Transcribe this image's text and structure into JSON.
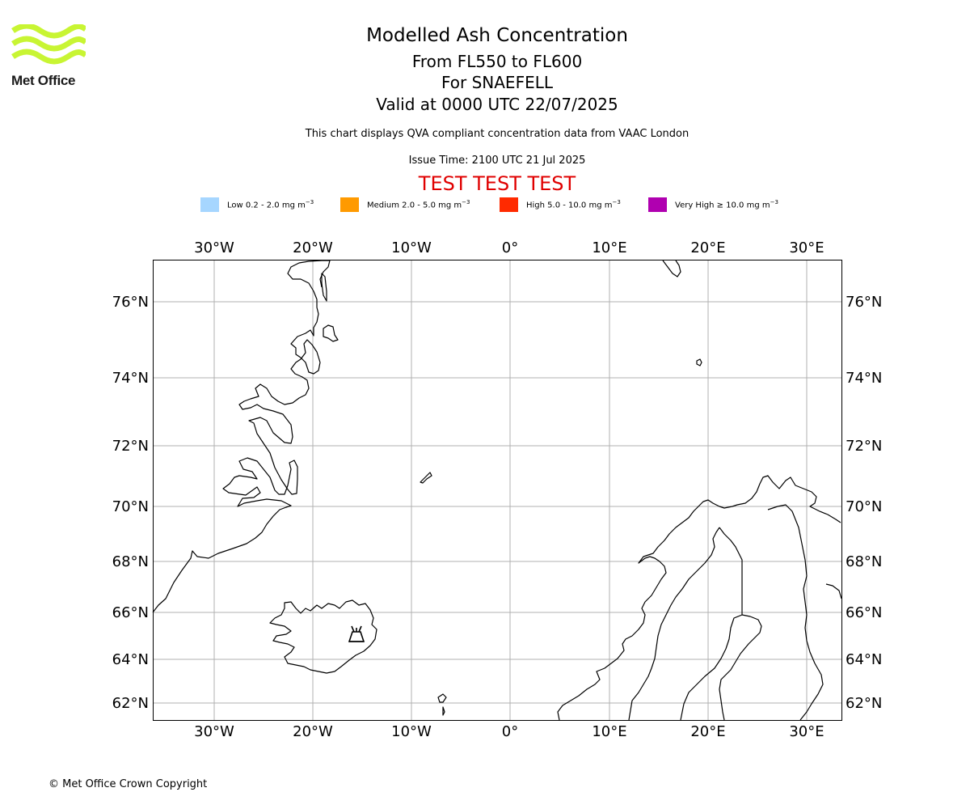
{
  "header": {
    "logo_text": "Met Office",
    "title": "Modelled Ash Concentration",
    "levels": "From FL550 to FL600",
    "volcano": "For SNAEFELL",
    "valid": "Valid at 0000 UTC 22/07/2025",
    "subtitle": "This chart displays QVA compliant concentration data from VAAC London",
    "issue_time": "Issue Time: 2100 UTC 21 Jul 2025",
    "test_banner": "TEST TEST TEST"
  },
  "legend": [
    {
      "label": "Low 0.2 - 2.0 mg m",
      "sup": "−3",
      "color": "#a6d6ff"
    },
    {
      "label": "Medium 2.0 - 5.0 mg m",
      "sup": "−3",
      "color": "#ff9a00"
    },
    {
      "label": "High 5.0 - 10.0 mg m",
      "sup": "−3",
      "color": "#ff2a00"
    },
    {
      "label": "Very High  ≥  10.0 mg m",
      "sup": "−3",
      "color": "#b000b0"
    }
  ],
  "map": {
    "lon_ticks": [
      "30°W",
      "20°W",
      "10°W",
      "0°",
      "10°E",
      "20°E",
      "30°E"
    ],
    "lat_ticks": [
      "76°N",
      "74°N",
      "72°N",
      "70°N",
      "68°N",
      "66°N",
      "64°N",
      "62°N"
    ],
    "volcano_marker": "volcano-icon",
    "grid_color": "#b0b0b0",
    "coast_color": "#000000"
  },
  "footer": {
    "copyright": "© Met Office Crown Copyright"
  }
}
